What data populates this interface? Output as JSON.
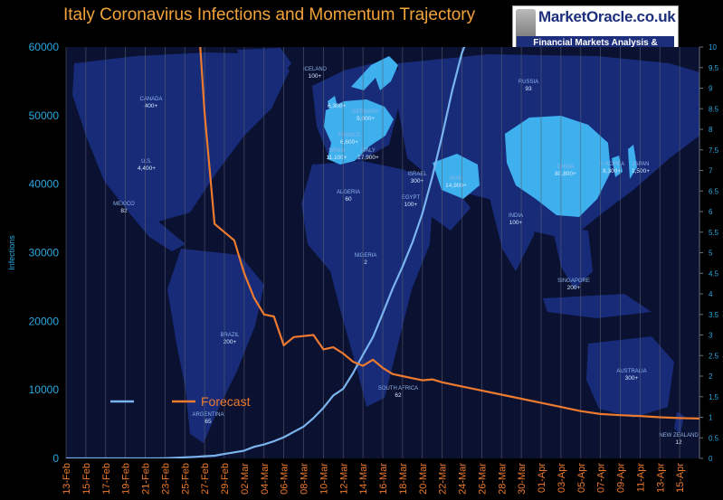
{
  "chart_data": {
    "type": "line",
    "title": "Italy Coronavirus Infections and Momentum Trajectory",
    "ylabel": "Infections",
    "ylim": [
      0,
      60000
    ],
    "y2lim": [
      0,
      10
    ],
    "y_ticks": [
      0,
      10000,
      20000,
      30000,
      40000,
      50000,
      60000
    ],
    "y2_ticks": [
      0,
      0.5,
      1,
      1.5,
      2,
      2.5,
      3,
      3.5,
      4,
      4.5,
      5,
      5.5,
      6,
      6.5,
      7,
      7.5,
      8,
      8.5,
      9,
      9.5,
      10
    ],
    "x_tick_labels": [
      "13-Feb",
      "15-Feb",
      "17-Feb",
      "19-Feb",
      "21-Feb",
      "23-Feb",
      "25-Feb",
      "27-Feb",
      "29-Feb",
      "02-Mar",
      "04-Mar",
      "06-Mar",
      "08-Mar",
      "10-Mar",
      "12-Mar",
      "14-Mar",
      "16-Mar",
      "18-Mar",
      "20-Mar",
      "22-Mar",
      "24-Mar",
      "26-Mar",
      "28-Mar",
      "30-Mar",
      "01-Apr",
      "03-Apr",
      "05-Apr",
      "07-Apr",
      "09-Apr",
      "11-Apr",
      "13-Apr",
      "15-Apr"
    ],
    "x_range_days": [
      0,
      64
    ],
    "grid": "vertical",
    "legend_position": "bottom-left",
    "series": [
      {
        "name": "",
        "axis": "left",
        "color": "#7ab4ee",
        "points": [
          [
            0,
            3
          ],
          [
            3,
            3
          ],
          [
            6,
            3
          ],
          [
            9,
            3
          ],
          [
            10,
            20
          ],
          [
            11,
            79
          ],
          [
            12,
            150
          ],
          [
            13,
            229
          ],
          [
            14,
            322
          ],
          [
            15,
            400
          ],
          [
            16,
            650
          ],
          [
            17,
            888
          ],
          [
            18,
            1128
          ],
          [
            19,
            1694
          ],
          [
            20,
            2036
          ],
          [
            21,
            2502
          ],
          [
            22,
            3089
          ],
          [
            23,
            3858
          ],
          [
            24,
            4636
          ],
          [
            25,
            5883
          ],
          [
            26,
            7375
          ],
          [
            27,
            9172
          ],
          [
            28,
            10149
          ],
          [
            29,
            12462
          ],
          [
            30,
            15113
          ],
          [
            31,
            17660
          ],
          [
            32,
            21157
          ],
          [
            33,
            24747
          ],
          [
            34,
            27980
          ],
          [
            35,
            31506
          ],
          [
            36,
            35713
          ],
          [
            37,
            41035
          ],
          [
            38,
            47021
          ],
          [
            39,
            53578
          ],
          [
            40,
            59138
          ],
          [
            40.5,
            61000
          ]
        ]
      },
      {
        "name": "Forecast",
        "axis": "right",
        "color": "#ec7a2f",
        "points": [
          [
            13.5,
            10.2
          ],
          [
            14,
            8.4
          ],
          [
            15,
            5.7
          ],
          [
            17,
            5.3
          ],
          [
            18,
            4.5
          ],
          [
            19,
            3.9
          ],
          [
            20,
            3.5
          ],
          [
            21,
            3.45
          ],
          [
            22,
            2.75
          ],
          [
            23,
            2.95
          ],
          [
            25,
            3.0
          ],
          [
            26,
            2.65
          ],
          [
            27,
            2.7
          ],
          [
            28,
            2.55
          ],
          [
            29,
            2.35
          ],
          [
            30,
            2.25
          ],
          [
            31,
            2.4
          ],
          [
            32,
            2.2
          ],
          [
            33,
            2.05
          ],
          [
            34,
            2.0
          ],
          [
            35,
            1.95
          ],
          [
            36,
            1.9
          ],
          [
            37,
            1.92
          ],
          [
            38,
            1.85
          ],
          [
            40,
            1.75
          ],
          [
            42,
            1.65
          ],
          [
            44,
            1.55
          ],
          [
            46,
            1.45
          ],
          [
            48,
            1.35
          ],
          [
            50,
            1.25
          ],
          [
            52,
            1.15
          ],
          [
            54,
            1.08
          ],
          [
            56,
            1.05
          ],
          [
            58,
            1.03
          ],
          [
            60,
            1.0
          ],
          [
            62,
            0.98
          ],
          [
            64,
            0.97
          ]
        ]
      }
    ],
    "map_labels": [
      {
        "name": "ICELAND",
        "value": "100+"
      },
      {
        "name": "RUSSIA",
        "value": "93"
      },
      {
        "name": "CANADA",
        "value": "400+"
      },
      {
        "name": "U.S.",
        "value": "4,400+"
      },
      {
        "name": "MEXICO",
        "value": "82"
      },
      {
        "name": "",
        "value": "6,300+"
      },
      {
        "name": "GERMANY",
        "value": "9,000+"
      },
      {
        "name": "FRANCE",
        "value": "6,600+"
      },
      {
        "name": "SPAIN",
        "value": "11,100+"
      },
      {
        "name": "ITALY",
        "value": "27,900+"
      },
      {
        "name": "ALGERIA",
        "value": "60"
      },
      {
        "name": "ISRAEL",
        "value": "300+"
      },
      {
        "name": "EGYPT",
        "value": "100+"
      },
      {
        "name": "IRAN",
        "value": "14,900+"
      },
      {
        "name": "NIGERIA",
        "value": "2"
      },
      {
        "name": "CHINA",
        "value": "80,800+"
      },
      {
        "name": "S. KOREA",
        "value": "8,300+"
      },
      {
        "name": "JAPAN",
        "value": "1,500+"
      },
      {
        "name": "INDIA",
        "value": "100+"
      },
      {
        "name": "SINGAPORE",
        "value": "200+"
      },
      {
        "name": "BRAZIL",
        "value": "200+"
      },
      {
        "name": "SOUTH AFRICA",
        "value": "62"
      },
      {
        "name": "ARGENTINA",
        "value": "65"
      },
      {
        "name": "AUSTRALIA",
        "value": "300+"
      },
      {
        "name": "NEW ZEALAND",
        "value": "12"
      }
    ]
  },
  "logo": {
    "main": "MarketOracle.co.uk",
    "sub": "Financial Markets Analysis & Forecasts"
  },
  "colors": {
    "background": "#000000",
    "map_ocean": "#0b1130",
    "map_land": "#172b78",
    "map_highlight": "#3fb0ee",
    "axis_text": "#29a8e0",
    "title": "#f2a33a"
  }
}
